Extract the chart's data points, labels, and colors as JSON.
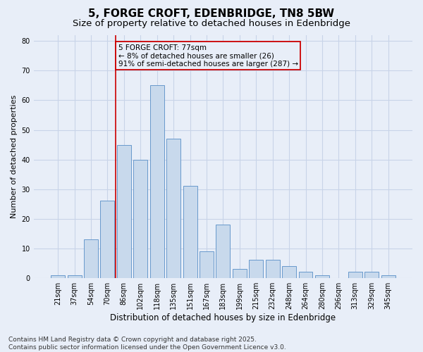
{
  "title": "5, FORGE CROFT, EDENBRIDGE, TN8 5BW",
  "subtitle": "Size of property relative to detached houses in Edenbridge",
  "xlabel": "Distribution of detached houses by size in Edenbridge",
  "ylabel": "Number of detached properties",
  "categories": [
    "21sqm",
    "37sqm",
    "54sqm",
    "70sqm",
    "86sqm",
    "102sqm",
    "118sqm",
    "135sqm",
    "151sqm",
    "167sqm",
    "183sqm",
    "199sqm",
    "215sqm",
    "232sqm",
    "248sqm",
    "264sqm",
    "280sqm",
    "296sqm",
    "313sqm",
    "329sqm",
    "345sqm"
  ],
  "values": [
    1,
    1,
    13,
    26,
    45,
    40,
    65,
    47,
    31,
    9,
    18,
    3,
    6,
    6,
    4,
    2,
    1,
    0,
    2,
    2,
    1
  ],
  "bar_color": "#c8d9ec",
  "bar_edgecolor": "#6899cc",
  "vline_x_index": 3.5,
  "vline_color": "#cc0000",
  "annotation_text": "5 FORGE CROFT: 77sqm\n← 8% of detached houses are smaller (26)\n91% of semi-detached houses are larger (287) →",
  "annotation_box_edgecolor": "#cc0000",
  "ylim": [
    0,
    82
  ],
  "yticks": [
    0,
    10,
    20,
    30,
    40,
    50,
    60,
    70,
    80
  ],
  "grid_color": "#c8d4e8",
  "background_color": "#e8eef8",
  "footer": "Contains HM Land Registry data © Crown copyright and database right 2025.\nContains public sector information licensed under the Open Government Licence v3.0.",
  "title_fontsize": 11,
  "subtitle_fontsize": 9.5,
  "xlabel_fontsize": 8.5,
  "ylabel_fontsize": 8,
  "tick_fontsize": 7,
  "annotation_fontsize": 7.5,
  "footer_fontsize": 6.5
}
